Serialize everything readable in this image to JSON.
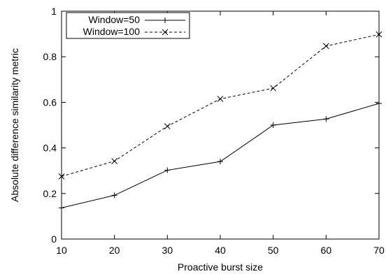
{
  "chart_data": {
    "type": "line",
    "title": "",
    "xlabel": "Proactive burst size",
    "ylabel": "Absolute difference similarity metric",
    "xlim": [
      10,
      70
    ],
    "ylim": [
      0,
      1
    ],
    "xticks": [
      10,
      20,
      30,
      40,
      50,
      60,
      70
    ],
    "yticks": [
      0,
      0.2,
      0.4,
      0.6,
      0.8,
      1
    ],
    "ytick_labels": [
      "0",
      "0.2",
      "0.4",
      "0.6",
      "0.8",
      "1"
    ],
    "grid": false,
    "legend_position": "top-left",
    "x": [
      10,
      20,
      30,
      40,
      50,
      60,
      70
    ],
    "series": [
      {
        "name": "Window=50",
        "values": [
          0.137,
          0.192,
          0.302,
          0.34,
          0.5,
          0.527,
          0.595
        ],
        "marker": "plus",
        "line_style": "solid",
        "color": "#000000"
      },
      {
        "name": "Window=100",
        "values": [
          0.275,
          0.342,
          0.495,
          0.615,
          0.662,
          0.847,
          0.898
        ],
        "marker": "cross",
        "line_style": "dashed",
        "color": "#000000"
      }
    ]
  }
}
